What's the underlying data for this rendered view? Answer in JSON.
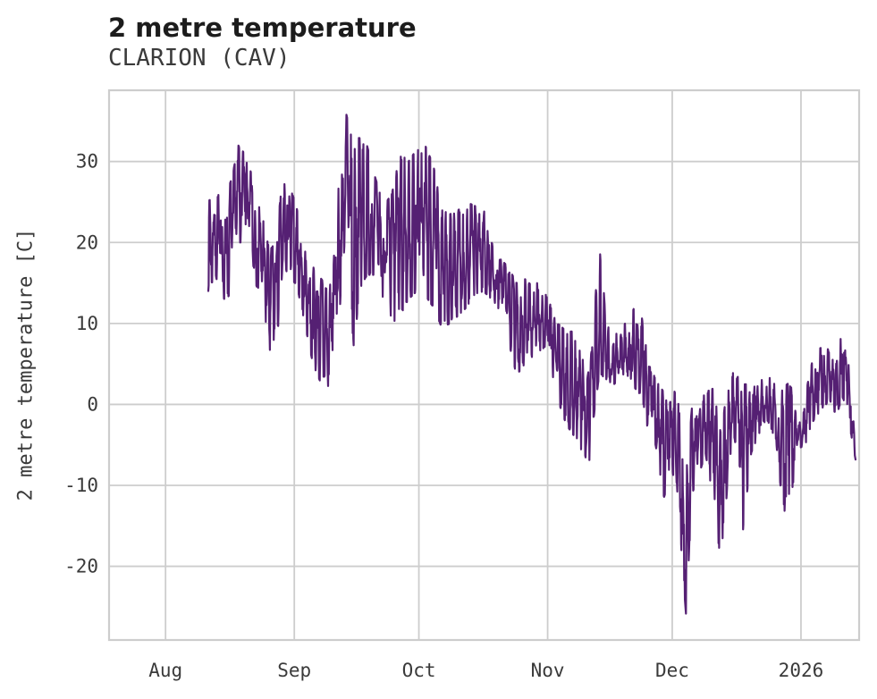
{
  "chart_data": {
    "type": "line",
    "title": "2 metre temperature",
    "subtitle": "CLARION (CAV)",
    "xlabel": "",
    "ylabel": "2 metre temperature [C]",
    "units": "C",
    "background_color": "#ffffff",
    "grid": true,
    "grid_color": "#cdcdcd",
    "spine_color": "#cdcdcd",
    "text_color": "#3a3a3a",
    "title_color": "#1c1c1c",
    "line_color": "#552073",
    "line_width": 2.2,
    "legend": "none",
    "ylim": [
      -29.1,
      38.8
    ],
    "yticks": [
      30,
      20,
      10,
      0,
      -10,
      -20
    ],
    "xlim_days_since_aug1": [
      -13.6,
      167.0
    ],
    "xticks": [
      {
        "label": "Aug",
        "day": 0
      },
      {
        "label": "Sep",
        "day": 31
      },
      {
        "label": "Oct",
        "day": 61
      },
      {
        "label": "Nov",
        "day": 92
      },
      {
        "label": "Dec",
        "day": 122
      },
      {
        "label": "2026",
        "day": 153
      }
    ],
    "observed_max_c": 35.9,
    "observed_min_c": -25.9,
    "series": [
      {
        "name": "2 metre temperature",
        "sample_hours": 2,
        "diurnal_peak_hour": 15,
        "noise_seed": 7,
        "start_day": 10.3,
        "end_day": 166.2,
        "envelope_keypoints_day_low_high": [
          [
            10.3,
            14,
            25
          ],
          [
            12,
            16,
            26.5
          ],
          [
            14,
            12.5,
            25
          ],
          [
            16,
            14,
            28
          ],
          [
            17.5,
            20,
            32
          ],
          [
            19,
            20,
            31
          ],
          [
            21,
            16,
            28
          ],
          [
            23,
            13,
            24
          ],
          [
            25,
            6.6,
            19
          ],
          [
            26.5,
            8,
            20
          ],
          [
            28,
            12,
            27
          ],
          [
            29.5,
            15,
            27.5
          ],
          [
            31.5,
            15,
            24.5
          ],
          [
            33.5,
            10,
            19
          ],
          [
            35.5,
            5,
            17
          ],
          [
            37.5,
            2.5,
            15.5
          ],
          [
            39.5,
            1.7,
            14
          ],
          [
            41.5,
            10,
            26
          ],
          [
            43.5,
            17,
            35.9
          ],
          [
            45,
            2.5,
            32.5
          ],
          [
            46.5,
            14,
            33
          ],
          [
            48.5,
            16,
            32
          ],
          [
            50.5,
            16,
            28
          ],
          [
            52.5,
            13,
            24.5
          ],
          [
            54.5,
            10,
            26
          ],
          [
            56.5,
            11,
            31
          ],
          [
            58.5,
            13,
            30
          ],
          [
            60.5,
            14,
            31.5
          ],
          [
            62.5,
            13.5,
            32
          ],
          [
            64.5,
            12,
            29.5
          ],
          [
            66.5,
            9.5,
            24
          ],
          [
            68.5,
            10,
            23.5
          ],
          [
            70.5,
            11,
            24
          ],
          [
            72.5,
            12,
            25
          ],
          [
            74.5,
            13.5,
            24.5
          ],
          [
            76.5,
            14,
            24.3
          ],
          [
            78.5,
            13,
            20
          ],
          [
            80.5,
            11.5,
            18
          ],
          [
            82.5,
            8,
            17
          ],
          [
            84.5,
            3.6,
            15
          ],
          [
            86.5,
            5,
            15.5
          ],
          [
            88.5,
            6,
            14.5
          ],
          [
            90.5,
            6.5,
            15.5
          ],
          [
            92.5,
            4.5,
            12.5
          ],
          [
            94.5,
            0.5,
            10
          ],
          [
            96.5,
            -2.5,
            9
          ],
          [
            98.5,
            -4,
            9
          ],
          [
            100.5,
            -6,
            6
          ],
          [
            101.5,
            -9.7,
            3
          ],
          [
            103,
            -2,
            8
          ],
          [
            104.5,
            4,
            22.5
          ],
          [
            106,
            3,
            10
          ],
          [
            108,
            2.5,
            8.5
          ],
          [
            110,
            3.5,
            9.5
          ],
          [
            112,
            2.5,
            11
          ],
          [
            114,
            1.5,
            13.2
          ],
          [
            116,
            -2.7,
            6
          ],
          [
            118,
            -5,
            3
          ],
          [
            120,
            -11.5,
            1.5
          ],
          [
            122,
            -8,
            2.5
          ],
          [
            123.5,
            -13,
            0
          ],
          [
            125.3,
            -25.9,
            -9
          ],
          [
            126.8,
            -11,
            0
          ],
          [
            128.5,
            -8.6,
            1
          ],
          [
            130,
            -6,
            1.5
          ],
          [
            132,
            -12,
            2
          ],
          [
            133.8,
            -21.6,
            -4
          ],
          [
            135.5,
            -8,
            3.5
          ],
          [
            137,
            -4,
            4
          ],
          [
            139,
            -16,
            2.5
          ],
          [
            141,
            -6,
            2.5
          ],
          [
            143,
            -3.5,
            3
          ],
          [
            145,
            -2,
            3.5
          ],
          [
            147,
            -4.5,
            2.5
          ],
          [
            149,
            -15,
            3
          ],
          [
            150.8,
            -10.8,
            2
          ],
          [
            152.3,
            -5.5,
            -3
          ],
          [
            154,
            -5,
            1
          ],
          [
            156,
            -2,
            6
          ],
          [
            158,
            -0.5,
            9.1
          ],
          [
            160,
            0.5,
            6
          ],
          [
            161.5,
            -1.5,
            5
          ],
          [
            163,
            1,
            9.4
          ],
          [
            164.5,
            -2,
            8
          ],
          [
            166.2,
            -7,
            -6.5
          ]
        ]
      }
    ]
  }
}
